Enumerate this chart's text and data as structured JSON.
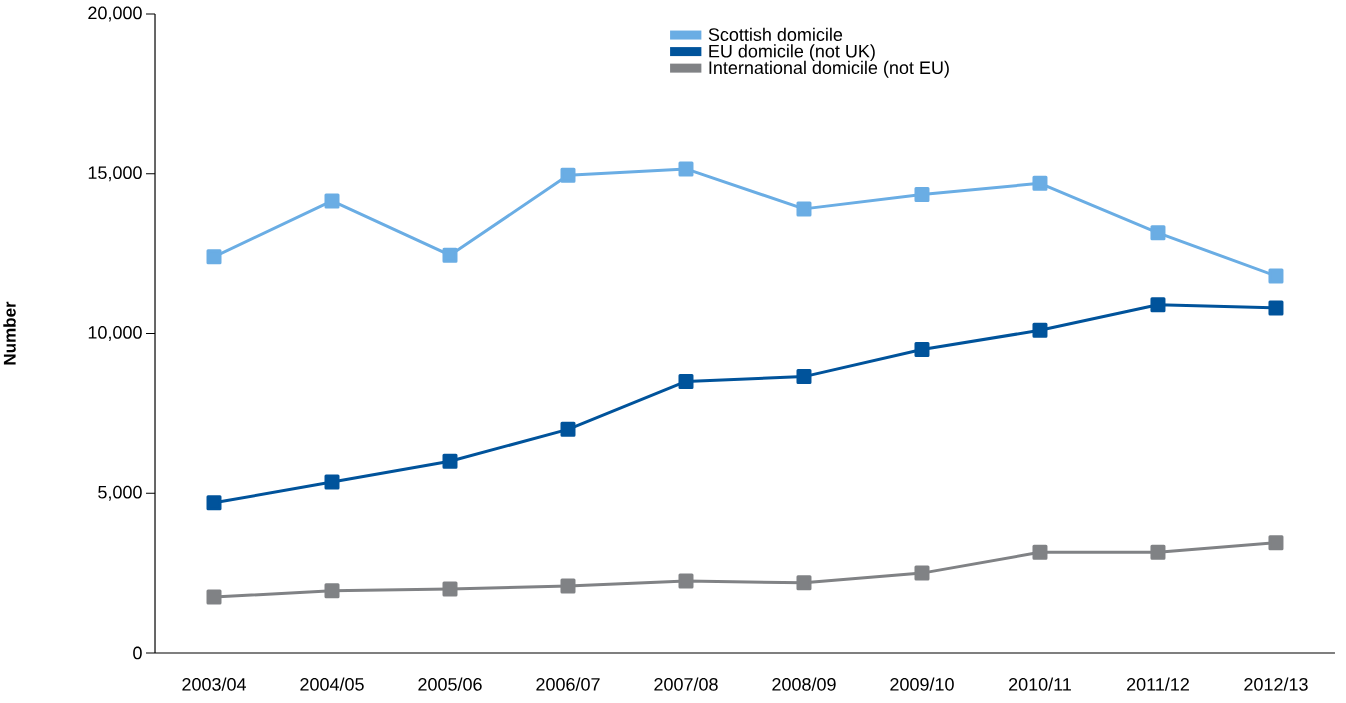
{
  "chart_data": {
    "type": "line",
    "ylabel": "Number",
    "categories": [
      "2003/04",
      "2004/05",
      "2005/06",
      "2006/07",
      "2007/08",
      "2008/09",
      "2009/10",
      "2010/11",
      "2011/12",
      "2012/13"
    ],
    "series": [
      {
        "name": "Scottish domicile",
        "color": "#6aade4",
        "values": [
          12400,
          14150,
          12450,
          14950,
          15150,
          13900,
          14350,
          14700,
          13150,
          11800
        ]
      },
      {
        "name": "EU domicile (not UK)",
        "color": "#00539b",
        "values": [
          4700,
          5350,
          6000,
          7000,
          8500,
          8650,
          9500,
          10100,
          10900,
          10800
        ]
      },
      {
        "name": "International domicile (not EU)",
        "color": "#808285",
        "values": [
          1750,
          1950,
          2000,
          2100,
          2250,
          2200,
          2500,
          3150,
          3150,
          3450
        ]
      }
    ],
    "ylim": [
      0,
      20000
    ],
    "yticks": [
      0,
      {
        "value": 5000,
        "label": "5,000"
      },
      {
        "value": 10000,
        "label": "10,000"
      },
      {
        "value": 15000,
        "label": "15,000"
      },
      {
        "value": 20000,
        "label": "20,000"
      }
    ],
    "grid": false,
    "legend": "top",
    "marker": "square",
    "line_style": "solid"
  }
}
